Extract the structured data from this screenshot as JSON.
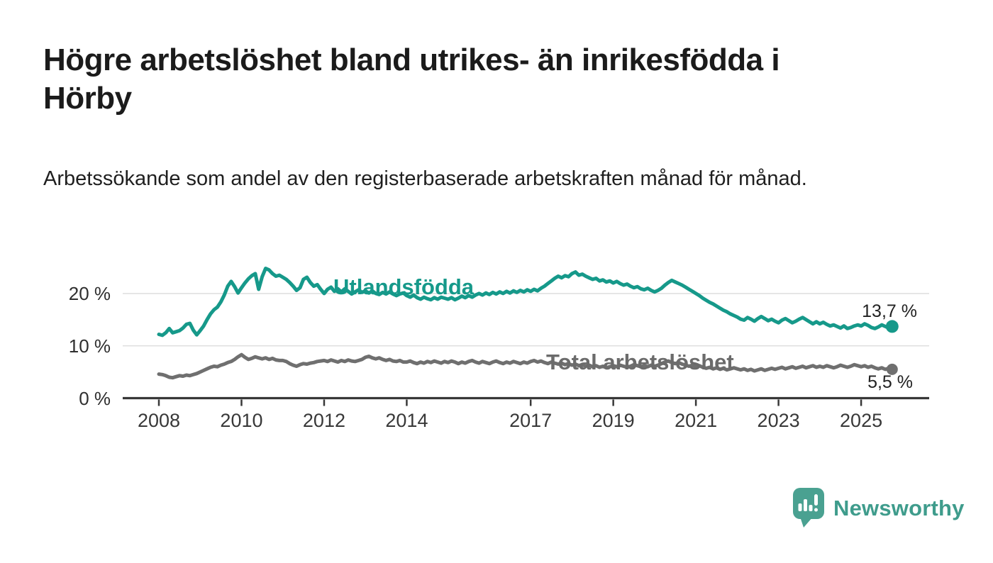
{
  "header": {
    "title": "Högre arbetslöshet bland utrikes- än inrikesfödda i Hörby",
    "subtitle": "Arbetssökande som andel av den registerbaserade arbetskraften månad för månad."
  },
  "chart_data": {
    "type": "line",
    "title": "Högre arbetslöshet bland utrikes- än inrikesfödda i Hörby",
    "frequency": "monthly",
    "x_start": "2008-01",
    "x_end": "2025-10",
    "x_tick_years": [
      2008,
      2010,
      2012,
      2014,
      2017,
      2019,
      2021,
      2023,
      2025
    ],
    "y_ticks": [
      {
        "value": 0,
        "label": "0 %"
      },
      {
        "value": 10,
        "label": "10 %"
      },
      {
        "value": 20,
        "label": "20 %"
      }
    ],
    "ylim": [
      0,
      26
    ],
    "grid": "horizontal",
    "legend_position": "inline-labels",
    "colors": {
      "utlandsfodda": "#16998a",
      "total": "#6f6f6f",
      "gridline": "#e0e0e0",
      "axis": "#383838"
    },
    "series": [
      {
        "name": "Utlandsfödda",
        "color": "#16998a",
        "end_label": "13,7 %",
        "end_value": 13.7,
        "values": [
          12.2,
          12.0,
          12.5,
          13.3,
          12.5,
          12.7,
          12.9,
          13.4,
          14.1,
          14.3,
          13.0,
          12.1,
          12.9,
          13.8,
          15.0,
          16.1,
          16.9,
          17.4,
          18.4,
          19.7,
          21.4,
          22.3,
          21.3,
          20.1,
          21.1,
          22.0,
          22.8,
          23.4,
          23.8,
          20.8,
          23.2,
          24.8,
          24.5,
          23.8,
          23.3,
          23.5,
          23.1,
          22.7,
          22.1,
          21.4,
          20.6,
          21.1,
          22.7,
          23.1,
          22.1,
          21.4,
          21.7,
          20.8,
          20.0,
          20.8,
          21.2,
          20.4,
          20.9,
          20.3,
          20.9,
          20.4,
          19.9,
          20.3,
          20.7,
          20.2,
          20.5,
          20.1,
          20.5,
          20.0,
          19.8,
          20.2,
          19.9,
          20.3,
          19.9,
          19.6,
          19.9,
          20.1,
          19.6,
          19.3,
          19.7,
          19.2,
          18.9,
          19.3,
          19.0,
          18.8,
          19.2,
          18.9,
          19.3,
          19.1,
          18.9,
          19.2,
          18.8,
          19.1,
          19.5,
          19.2,
          19.6,
          19.3,
          19.7,
          20.0,
          19.7,
          20.1,
          19.8,
          20.2,
          19.9,
          20.3,
          20.0,
          20.4,
          20.1,
          20.5,
          20.2,
          20.6,
          20.3,
          20.7,
          20.4,
          20.8,
          20.5,
          21.0,
          21.4,
          21.9,
          22.4,
          22.9,
          23.3,
          23.0,
          23.4,
          23.2,
          23.8,
          24.1,
          23.5,
          23.7,
          23.3,
          23.0,
          22.7,
          22.9,
          22.4,
          22.6,
          22.2,
          22.4,
          22.0,
          22.3,
          21.9,
          21.6,
          21.8,
          21.4,
          21.1,
          21.3,
          20.9,
          20.7,
          21.0,
          20.6,
          20.3,
          20.6,
          21.0,
          21.6,
          22.1,
          22.5,
          22.2,
          21.9,
          21.6,
          21.2,
          20.8,
          20.4,
          20.0,
          19.6,
          19.1,
          18.7,
          18.3,
          18.0,
          17.6,
          17.2,
          16.8,
          16.5,
          16.1,
          15.8,
          15.5,
          15.1,
          14.9,
          15.4,
          15.1,
          14.7,
          15.2,
          15.6,
          15.2,
          14.8,
          15.1,
          14.7,
          14.4,
          14.9,
          15.2,
          14.8,
          14.4,
          14.7,
          15.1,
          15.4,
          15.0,
          14.6,
          14.2,
          14.6,
          14.2,
          14.5,
          14.1,
          13.8,
          14.0,
          13.7,
          13.4,
          13.8,
          13.3,
          13.5,
          13.8,
          14.0,
          13.8,
          14.2,
          13.9,
          13.5,
          13.3,
          13.6,
          14.0,
          13.7,
          13.4,
          13.7
        ]
      },
      {
        "name": "Total arbetslöshet",
        "color": "#6f6f6f",
        "end_label": "5,5 %",
        "end_value": 5.5,
        "values": [
          4.6,
          4.5,
          4.3,
          4.0,
          3.9,
          4.1,
          4.3,
          4.2,
          4.4,
          4.3,
          4.5,
          4.7,
          5.0,
          5.3,
          5.6,
          5.9,
          6.1,
          6.0,
          6.3,
          6.5,
          6.8,
          7.0,
          7.4,
          7.9,
          8.3,
          7.8,
          7.4,
          7.6,
          7.9,
          7.7,
          7.5,
          7.7,
          7.4,
          7.6,
          7.3,
          7.2,
          7.2,
          7.0,
          6.6,
          6.3,
          6.1,
          6.4,
          6.6,
          6.5,
          6.7,
          6.8,
          7.0,
          7.1,
          7.2,
          7.0,
          7.3,
          7.1,
          6.9,
          7.2,
          7.0,
          7.3,
          7.1,
          7.0,
          7.2,
          7.4,
          7.8,
          8.0,
          7.7,
          7.5,
          7.7,
          7.4,
          7.2,
          7.4,
          7.1,
          7.0,
          7.2,
          6.9,
          6.9,
          7.1,
          6.8,
          6.6,
          6.9,
          6.7,
          7.0,
          6.8,
          7.1,
          6.9,
          6.7,
          7.0,
          6.8,
          7.1,
          6.9,
          6.6,
          6.9,
          6.7,
          7.0,
          7.2,
          6.9,
          6.7,
          7.0,
          6.8,
          6.6,
          6.9,
          7.1,
          6.8,
          6.6,
          6.9,
          6.7,
          7.0,
          6.8,
          6.6,
          6.9,
          6.7,
          7.0,
          7.2,
          6.9,
          7.1,
          6.8,
          6.6,
          6.9,
          6.7,
          6.5,
          6.7,
          6.4,
          6.6,
          6.3,
          6.5,
          6.2,
          6.4,
          6.1,
          6.3,
          6.0,
          6.2,
          5.9,
          6.1,
          5.8,
          6.0,
          6.2,
          6.0,
          6.3,
          6.1,
          5.9,
          6.1,
          6.4,
          6.2,
          6.0,
          6.2,
          6.0,
          6.3,
          6.1,
          6.3,
          6.6,
          6.9,
          7.1,
          6.8,
          6.6,
          6.8,
          6.5,
          6.3,
          6.1,
          6.3,
          6.0,
          6.2,
          5.9,
          5.7,
          5.9,
          5.6,
          5.8,
          5.5,
          5.7,
          5.4,
          5.6,
          5.8,
          5.6,
          5.4,
          5.6,
          5.3,
          5.5,
          5.2,
          5.4,
          5.6,
          5.3,
          5.5,
          5.7,
          5.5,
          5.7,
          5.9,
          5.6,
          5.8,
          6.0,
          5.7,
          5.9,
          6.1,
          5.8,
          6.0,
          6.2,
          5.9,
          6.1,
          5.9,
          6.2,
          6.0,
          5.8,
          6.0,
          6.3,
          6.1,
          5.9,
          6.1,
          6.4,
          6.2,
          6.0,
          6.2,
          5.9,
          6.1,
          5.8,
          5.6,
          5.8,
          5.5,
          5.7,
          5.5
        ]
      }
    ]
  },
  "footer": {
    "brand": "Newsworthy"
  },
  "icons": {
    "logo": "bar-chart-speech-bubble-icon"
  }
}
